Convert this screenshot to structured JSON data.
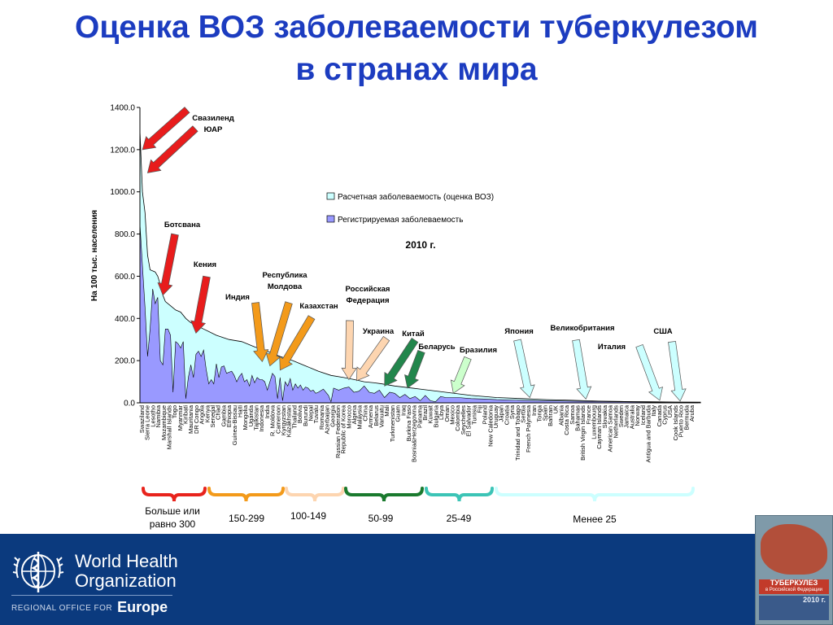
{
  "title_line1": "Оценка ВОЗ заболеваемости туберкулезом",
  "title_line2": "в странах мира",
  "chart_data": {
    "type": "area",
    "title": "2010 г.",
    "ylabel": "На 100 тыс. населения",
    "xlabel": "",
    "ylim": [
      0,
      1400
    ],
    "yticks": [
      "0.0",
      "200.0",
      "400.0",
      "600.0",
      "800.0",
      "1000.0",
      "1200.0",
      "1400.0"
    ],
    "legend_position": "top-right",
    "grid": false,
    "series": [
      {
        "name": "Расчетная заболеваемость (оценка ВОЗ)",
        "color": "#ccffff"
      },
      {
        "name": "Регистрируемая заболеваемость",
        "color": "#9999ff"
      }
    ],
    "estimated_curve": [
      [
        0,
        1290
      ],
      [
        1,
        1000
      ],
      [
        2,
        900
      ],
      [
        3,
        700
      ],
      [
        4,
        630
      ],
      [
        5,
        625
      ],
      [
        6,
        620
      ],
      [
        7,
        600
      ],
      [
        8,
        560
      ],
      [
        9,
        510
      ],
      [
        10,
        480
      ],
      [
        12,
        460
      ],
      [
        14,
        440
      ],
      [
        16,
        430
      ],
      [
        18,
        400
      ],
      [
        20,
        380
      ],
      [
        25,
        350
      ],
      [
        30,
        320
      ],
      [
        35,
        300
      ],
      [
        40,
        290
      ],
      [
        45,
        265
      ],
      [
        50,
        245
      ],
      [
        55,
        220
      ],
      [
        60,
        200
      ],
      [
        65,
        175
      ],
      [
        70,
        150
      ],
      [
        75,
        130
      ],
      [
        80,
        120
      ],
      [
        85,
        108
      ],
      [
        88,
        100
      ],
      [
        92,
        95
      ],
      [
        95,
        90
      ],
      [
        100,
        80
      ],
      [
        110,
        65
      ],
      [
        120,
        50
      ],
      [
        130,
        35
      ],
      [
        140,
        25
      ],
      [
        150,
        20
      ],
      [
        160,
        15
      ],
      [
        170,
        12
      ],
      [
        180,
        8
      ],
      [
        190,
        6
      ],
      [
        200,
        5
      ],
      [
        210,
        4
      ],
      [
        220,
        3
      ]
    ],
    "registered_curve": [
      [
        0,
        850
      ],
      [
        1,
        650
      ],
      [
        2,
        450
      ],
      [
        3,
        220
      ],
      [
        4,
        350
      ],
      [
        5,
        540
      ],
      [
        6,
        470
      ],
      [
        7,
        500
      ],
      [
        8,
        200
      ],
      [
        9,
        180
      ],
      [
        10,
        350
      ],
      [
        11,
        350
      ],
      [
        12,
        320
      ],
      [
        13,
        50
      ],
      [
        14,
        290
      ],
      [
        15,
        280
      ],
      [
        16,
        260
      ],
      [
        17,
        290
      ],
      [
        18,
        20
      ],
      [
        19,
        120
      ],
      [
        20,
        180
      ],
      [
        21,
        120
      ],
      [
        22,
        230
      ],
      [
        23,
        245
      ],
      [
        24,
        220
      ],
      [
        25,
        250
      ],
      [
        26,
        160
      ],
      [
        27,
        90
      ],
      [
        28,
        110
      ],
      [
        29,
        90
      ],
      [
        30,
        185
      ],
      [
        31,
        120
      ],
      [
        32,
        170
      ],
      [
        33,
        175
      ],
      [
        34,
        140
      ],
      [
        35,
        145
      ],
      [
        36,
        150
      ],
      [
        37,
        130
      ],
      [
        38,
        100
      ],
      [
        39,
        125
      ],
      [
        40,
        140
      ],
      [
        41,
        100
      ],
      [
        42,
        110
      ],
      [
        43,
        80
      ],
      [
        44,
        130
      ],
      [
        45,
        95
      ],
      [
        46,
        120
      ],
      [
        47,
        110
      ],
      [
        48,
        110
      ],
      [
        49,
        100
      ],
      [
        50,
        60
      ],
      [
        51,
        100
      ],
      [
        52,
        140
      ],
      [
        53,
        125
      ],
      [
        54,
        20
      ],
      [
        55,
        120
      ],
      [
        56,
        10
      ],
      [
        57,
        100
      ],
      [
        58,
        80
      ],
      [
        59,
        115
      ],
      [
        60,
        60
      ],
      [
        61,
        90
      ],
      [
        62,
        70
      ],
      [
        63,
        85
      ],
      [
        64,
        60
      ],
      [
        65,
        75
      ],
      [
        66,
        70
      ],
      [
        67,
        55
      ],
      [
        68,
        60
      ],
      [
        69,
        45
      ],
      [
        70,
        50
      ],
      [
        72,
        65
      ],
      [
        74,
        35
      ],
      [
        75,
        5
      ],
      [
        76,
        70
      ],
      [
        78,
        60
      ],
      [
        80,
        70
      ],
      [
        82,
        75
      ],
      [
        84,
        50
      ],
      [
        86,
        55
      ],
      [
        88,
        80
      ],
      [
        90,
        50
      ],
      [
        92,
        45
      ],
      [
        94,
        60
      ],
      [
        96,
        25
      ],
      [
        98,
        50
      ],
      [
        100,
        45
      ],
      [
        102,
        25
      ],
      [
        104,
        40
      ],
      [
        106,
        20
      ],
      [
        108,
        30
      ],
      [
        110,
        10
      ],
      [
        112,
        35
      ],
      [
        114,
        10
      ],
      [
        116,
        5
      ],
      [
        118,
        30
      ],
      [
        120,
        25
      ],
      [
        125,
        25
      ],
      [
        130,
        20
      ],
      [
        135,
        18
      ],
      [
        140,
        15
      ],
      [
        150,
        12
      ],
      [
        160,
        10
      ],
      [
        170,
        8
      ],
      [
        180,
        6
      ],
      [
        190,
        5
      ],
      [
        200,
        3
      ],
      [
        210,
        2
      ],
      [
        220,
        1
      ]
    ],
    "x_count": 220,
    "categories": [
      "Swaziland",
      "Sierra Leone",
      "Lesotho",
      "Namibia",
      "Mozambique",
      "Marshall Islands",
      "Togo",
      "Myanmar",
      "Kiribati",
      "Mauritania",
      "DR Congo",
      "Angola",
      "Kenya",
      "Senegal",
      "Chad",
      "Gambia",
      "Ethiopia",
      "Guinea-Bissau",
      "Haiti",
      "Mongolia",
      "Uganda",
      "Tajikistan",
      "Indonesia",
      "India",
      "R. Moldova",
      "Cameroon",
      "Kyrgyzstan",
      "Kazakhstan",
      "Thailand",
      "Bolivia",
      "Burundi",
      "Nepal",
      "Tuvalu",
      "Romania",
      "Azerbaijan",
      "Georgia",
      "Russian Federation",
      "Republic of Korea",
      "Morocco",
      "Algeria",
      "Malaysia",
      "China",
      "Armenia",
      "Belarus",
      "Vanuatu",
      "Mali",
      "Turkmenistan",
      "Guam",
      "Iraq",
      "Burkina Faso",
      "Bosnia&Herzegovina",
      "Panama",
      "Brazil",
      "Kuwait",
      "Bulgaria",
      "Libya",
      "Oman",
      "Mexico",
      "Colombia",
      "Seychelles",
      "El Salvador",
      "Tunisia",
      "Fiji",
      "Poland",
      "New Caledonia",
      "Uruguay",
      "Japan",
      "Croatia",
      "Syria",
      "Trinidad and Tobago",
      "Serbia",
      "French Polynesia",
      "Iran",
      "Tonga",
      "Spain",
      "Bahrain",
      "UK",
      "Albania",
      "Costa Rica",
      "Samoa",
      "Bahamas",
      "British Virgin Islands",
      "France",
      "Luxembourg",
      "Cayman Islands",
      "Slovakia",
      "American Samoa",
      "Netherlands",
      "Sweden",
      "Jamaica",
      "Australia",
      "Norway",
      "Iceland",
      "Antigua and Barbuda",
      "Italy",
      "Canada",
      "Cyprus",
      "USA",
      "Cook Islands",
      "Puerto Rico",
      "Bermuda",
      "Aruba"
    ],
    "annotations": [
      {
        "label": "Свазиленд",
        "color": "#e81c1c",
        "x": 1,
        "y": 1200
      },
      {
        "label": "ЮАР",
        "color": "#e81c1c",
        "x": 3,
        "y": 1090
      },
      {
        "label": "Ботсвана",
        "color": "#e81c1c",
        "x": 9,
        "y": 510
      },
      {
        "label": "Кения",
        "color": "#e81c1c",
        "x": 22,
        "y": 330
      },
      {
        "label": "Индия",
        "color": "#f39a1a",
        "x": 48,
        "y": 195
      },
      {
        "label": "Республика Молдова",
        "color": "#f39a1a",
        "x": 51,
        "y": 175
      },
      {
        "label": "Казахстан",
        "color": "#f39a1a",
        "x": 55,
        "y": 155
      },
      {
        "label": "Российская Федерация",
        "color": "#fdd5b0",
        "x": 82,
        "y": 110
      },
      {
        "label": "Украина",
        "color": "#fdd5b0",
        "x": 85,
        "y": 105
      },
      {
        "label": "Китай",
        "color": "#22864c",
        "x": 96,
        "y": 80
      },
      {
        "label": "Беларусь",
        "color": "#22864c",
        "x": 105,
        "y": 70
      },
      {
        "label": "Бразилия",
        "color": "#ccffcc",
        "x": 123,
        "y": 45
      },
      {
        "label": "Япония",
        "color": "#ccffff",
        "x": 153,
        "y": 25
      },
      {
        "label": "Великобритания",
        "color": "#ccffff",
        "x": 175,
        "y": 18
      },
      {
        "label": "Италия",
        "color": "#ccffff",
        "x": 204,
        "y": 12
      },
      {
        "label": "США",
        "color": "#ccffff",
        "x": 212,
        "y": 8
      }
    ],
    "brackets": [
      {
        "label": "Больше или равно 300",
        "color": "#e8231c",
        "from": 0,
        "to": 26
      },
      {
        "label": "150-299",
        "color": "#f39a1a",
        "from": 27,
        "to": 57
      },
      {
        "label": "100-149",
        "color": "#fdd5b0",
        "from": 58,
        "to": 82
      },
      {
        "label": "50-99",
        "color": "#1a7a2e",
        "from": 83,
        "to": 112
      },
      {
        "label": "25-49",
        "color": "#3cc4b6",
        "from": 113,
        "to": 140
      },
      {
        "label": "Менее 25",
        "color": "#ccffff",
        "from": 141,
        "to": 219
      }
    ]
  },
  "footer": {
    "org_line1": "World Health",
    "org_line2": "Organization",
    "region_prefix": "REGIONAL OFFICE FOR",
    "region_name": "Europe",
    "emblem_icon": "who-emblem-icon",
    "poster_title": "ТУБЕРКУЛЕЗ",
    "poster_subtitle": "в Российской Федерации",
    "poster_year": "2010 г."
  }
}
